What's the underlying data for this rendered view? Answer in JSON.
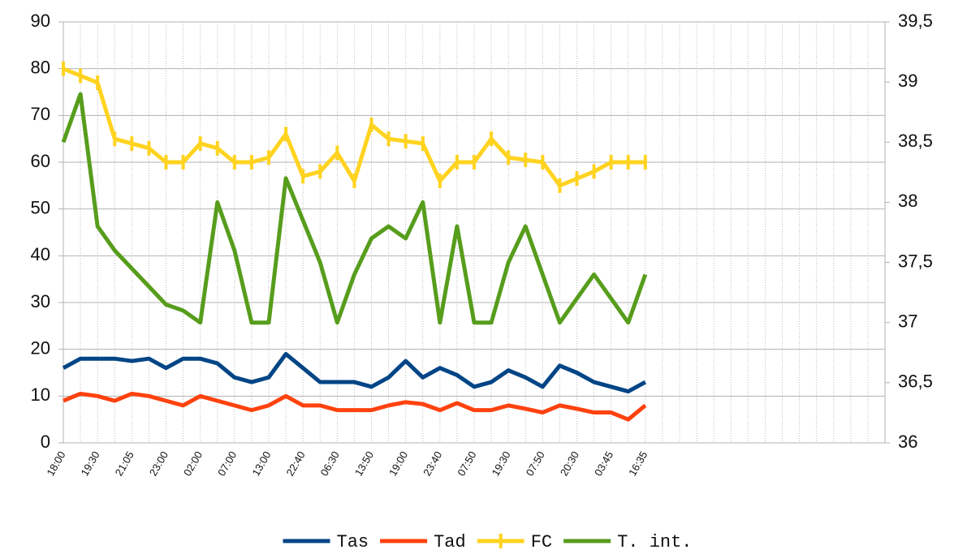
{
  "chart_data": {
    "type": "line",
    "categories": [
      "18:00",
      null,
      "19:30",
      null,
      "21:05",
      null,
      "23:00",
      null,
      "02:00",
      null,
      "07:00",
      null,
      "13:00",
      null,
      "22:40",
      null,
      "06:30",
      null,
      "13:50",
      null,
      "19:00",
      null,
      "23:40",
      null,
      "07:50",
      null,
      "19:30",
      null,
      "07:50",
      null,
      "20:30",
      null,
      "03:45",
      null,
      "16:35",
      null,
      null,
      null,
      null,
      null,
      null,
      null,
      null,
      null,
      null,
      null,
      null,
      null
    ],
    "series": [
      {
        "name": "Tas",
        "color": "#004586",
        "values": [
          16,
          18,
          18,
          18,
          17.5,
          18,
          16,
          18,
          18,
          17,
          14,
          13,
          14,
          19,
          16,
          13,
          13,
          13,
          12,
          14,
          17.5,
          14,
          16,
          14.5,
          12,
          13,
          15.5,
          14,
          12,
          16.5,
          15,
          13,
          12,
          11,
          13,
          null,
          null,
          null,
          null,
          null,
          null,
          null,
          null,
          null,
          null,
          null,
          null,
          null
        ]
      },
      {
        "name": "Tad",
        "color": "#ff420e",
        "values": [
          9,
          10.5,
          10,
          9,
          10.5,
          10,
          9,
          8,
          10,
          9,
          8,
          7,
          8,
          10,
          8,
          8,
          7,
          7,
          7,
          8,
          8.7,
          8.3,
          7,
          8.5,
          7,
          7,
          8,
          7.3,
          6.5,
          8,
          7.3,
          6.5,
          6.5,
          5,
          8,
          null,
          null,
          null,
          null,
          null,
          null,
          null,
          null,
          null,
          null,
          null,
          null,
          null
        ]
      },
      {
        "name": "FC",
        "color": "#ffd320",
        "marker": "cross",
        "values": [
          80,
          78.5,
          77,
          65,
          64,
          63,
          60,
          60,
          64,
          63,
          60,
          60,
          61,
          66,
          57,
          58,
          62,
          56,
          68,
          65,
          64.5,
          64,
          56,
          60,
          60,
          65,
          61,
          60.5,
          60,
          55,
          56.5,
          58,
          60,
          60,
          60,
          null,
          null,
          null,
          null,
          null,
          null,
          null,
          null,
          null,
          null,
          null,
          null,
          null
        ]
      },
      {
        "name": "T. int.",
        "color": "#579d1c",
        "axis": "y2",
        "values": [
          38.5,
          38.9,
          37.8,
          37.6,
          37.45,
          37.3,
          37.15,
          37.1,
          37.0,
          38.0,
          37.6,
          37.0,
          37.0,
          38.2,
          37.85,
          37.5,
          37.0,
          37.4,
          37.7,
          37.8,
          37.7,
          38.0,
          37.0,
          37.8,
          37.0,
          37.0,
          37.5,
          37.8,
          37.4,
          37.0,
          37.2,
          37.4,
          37.2,
          37.0,
          37.4,
          null,
          null,
          null,
          null,
          null,
          null,
          null,
          null,
          null,
          null,
          null,
          null,
          null
        ]
      }
    ],
    "ylim": [
      0,
      90
    ],
    "yticks": [
      0,
      10,
      20,
      30,
      40,
      50,
      60,
      70,
      80,
      90
    ],
    "y2lim": [
      36,
      39.5
    ],
    "y2ticks": [
      36,
      {
        "value": 36.5,
        "label": "36,5"
      },
      37,
      {
        "value": 37.5,
        "label": "37,5"
      },
      38,
      {
        "value": 38.5,
        "label": "38,5"
      },
      39,
      {
        "value": 39.5,
        "label": "39,5"
      }
    ],
    "grid": true,
    "legend": "bottom"
  }
}
